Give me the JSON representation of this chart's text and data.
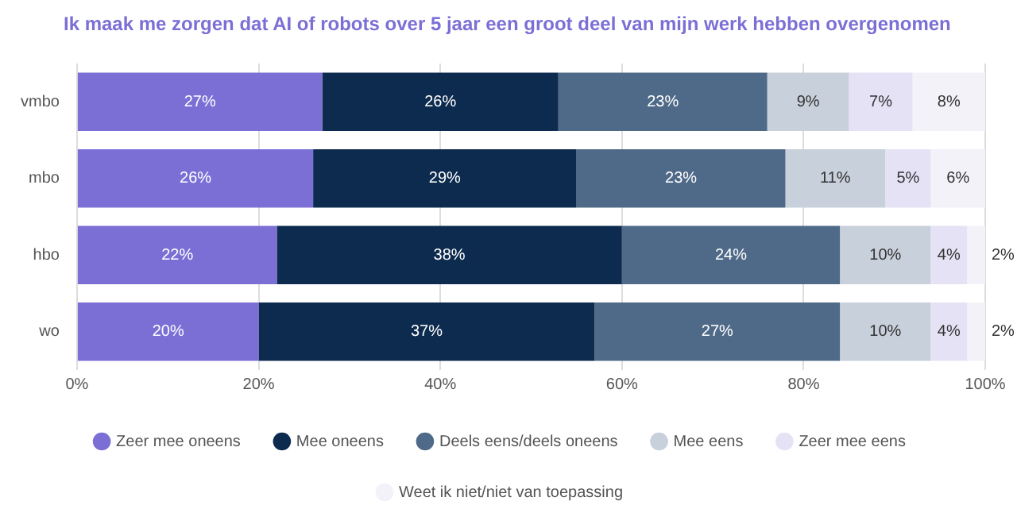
{
  "chart_data": {
    "type": "bar",
    "orientation": "horizontal",
    "stacked": true,
    "title": "Ik maak me zorgen dat AI of robots over 5 jaar een groot deel van mijn werk hebben overgenomen",
    "categories": [
      "vmbo",
      "mbo",
      "hbo",
      "wo"
    ],
    "series": [
      {
        "name": "Zeer mee oneens",
        "color": "#7b6fd6",
        "values": [
          27,
          26,
          22,
          20
        ],
        "value_labels": [
          "27%",
          "26%",
          "22%",
          "20%"
        ]
      },
      {
        "name": "Mee oneens",
        "color": "#0d2b4e",
        "values": [
          26,
          29,
          38,
          37
        ],
        "value_labels": [
          "26%",
          "29%",
          "38%",
          "37%"
        ]
      },
      {
        "name": "Deels eens/deels oneens",
        "color": "#4f6a88",
        "values": [
          23,
          23,
          24,
          27
        ],
        "value_labels": [
          "23%",
          "23%",
          "24%",
          "27%"
        ]
      },
      {
        "name": "Mee eens",
        "color": "#c8d0dc",
        "values": [
          9,
          11,
          10,
          10
        ],
        "value_labels": [
          "9%",
          "11%",
          "10%",
          "10%"
        ]
      },
      {
        "name": "Zeer mee eens",
        "color": "#e6e2f6",
        "values": [
          7,
          5,
          4,
          4
        ],
        "value_labels": [
          "7%",
          "5%",
          "4%",
          "4%"
        ]
      },
      {
        "name": "Weet ik niet/niet van toepassing",
        "color": "#f3f2f8",
        "values": [
          8,
          6,
          2,
          2
        ],
        "value_labels": [
          "8%",
          "6%",
          "2%",
          "2%"
        ]
      }
    ],
    "xlim": [
      0,
      100
    ],
    "xticks": [
      {
        "value": 0,
        "label": "0%"
      },
      {
        "value": 20,
        "label": "20%"
      },
      {
        "value": 40,
        "label": "40%"
      },
      {
        "value": 60,
        "label": "60%"
      },
      {
        "value": 80,
        "label": "80%"
      },
      {
        "value": 100,
        "label": "100%"
      }
    ],
    "grid": "x",
    "legend": "bottom"
  }
}
